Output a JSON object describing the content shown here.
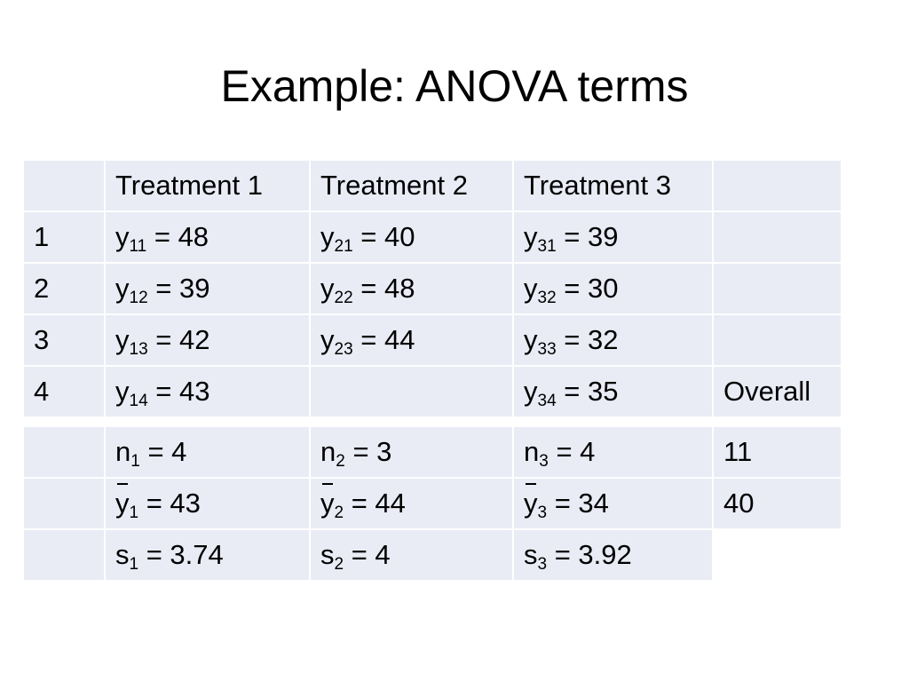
{
  "title": "Example: ANOVA terms",
  "header": [
    "",
    "Treatment 1",
    "Treatment 2",
    "Treatment 3",
    ""
  ],
  "observations": [
    {
      "row": "1",
      "t1": {
        "base": "y",
        "sub": "11",
        "val": " = 48"
      },
      "t2": {
        "base": "y",
        "sub": "21",
        "val": " = 40"
      },
      "t3": {
        "base": "y",
        "sub": "31",
        "val": " = 39"
      },
      "extra": ""
    },
    {
      "row": "2",
      "t1": {
        "base": "y",
        "sub": "12",
        "val": " = 39"
      },
      "t2": {
        "base": "y",
        "sub": "22",
        "val": " = 48"
      },
      "t3": {
        "base": "y",
        "sub": "32",
        "val": " = 30"
      },
      "extra": ""
    },
    {
      "row": "3",
      "t1": {
        "base": "y",
        "sub": "13",
        "val": " = 42"
      },
      "t2": {
        "base": "y",
        "sub": "23",
        "val": " = 44"
      },
      "t3": {
        "base": "y",
        "sub": "33",
        "val": " = 32"
      },
      "extra": ""
    },
    {
      "row": "4",
      "t1": {
        "base": "y",
        "sub": "14",
        "val": " = 43"
      },
      "t2": {
        "base": "",
        "sub": "",
        "val": ""
      },
      "t3": {
        "base": "y",
        "sub": "34",
        "val": " = 35"
      },
      "extra": "Overall"
    }
  ],
  "summary": [
    {
      "t1": {
        "base": "n",
        "sub": "1",
        "val": " = 4"
      },
      "t2": {
        "base": "n",
        "sub": "2",
        "val": " = 3"
      },
      "t3": {
        "base": "n",
        "sub": "3",
        "val": " = 4"
      },
      "overall": "11"
    },
    {
      "t1": {
        "base": "y",
        "sub": "1",
        "val": " = 43"
      },
      "t2": {
        "base": "y",
        "sub": "2",
        "val": " = 44"
      },
      "t3": {
        "base": "y",
        "sub": "3",
        "val": " = 34"
      },
      "overall": "40"
    },
    {
      "t1": {
        "base": "s",
        "sub": "1",
        "val": " = 3.74"
      },
      "t2": {
        "base": "s",
        "sub": "2",
        "val": " = 4"
      },
      "t3": {
        "base": "s",
        "sub": "3",
        "val": " = 3.92"
      },
      "overall": ""
    }
  ]
}
